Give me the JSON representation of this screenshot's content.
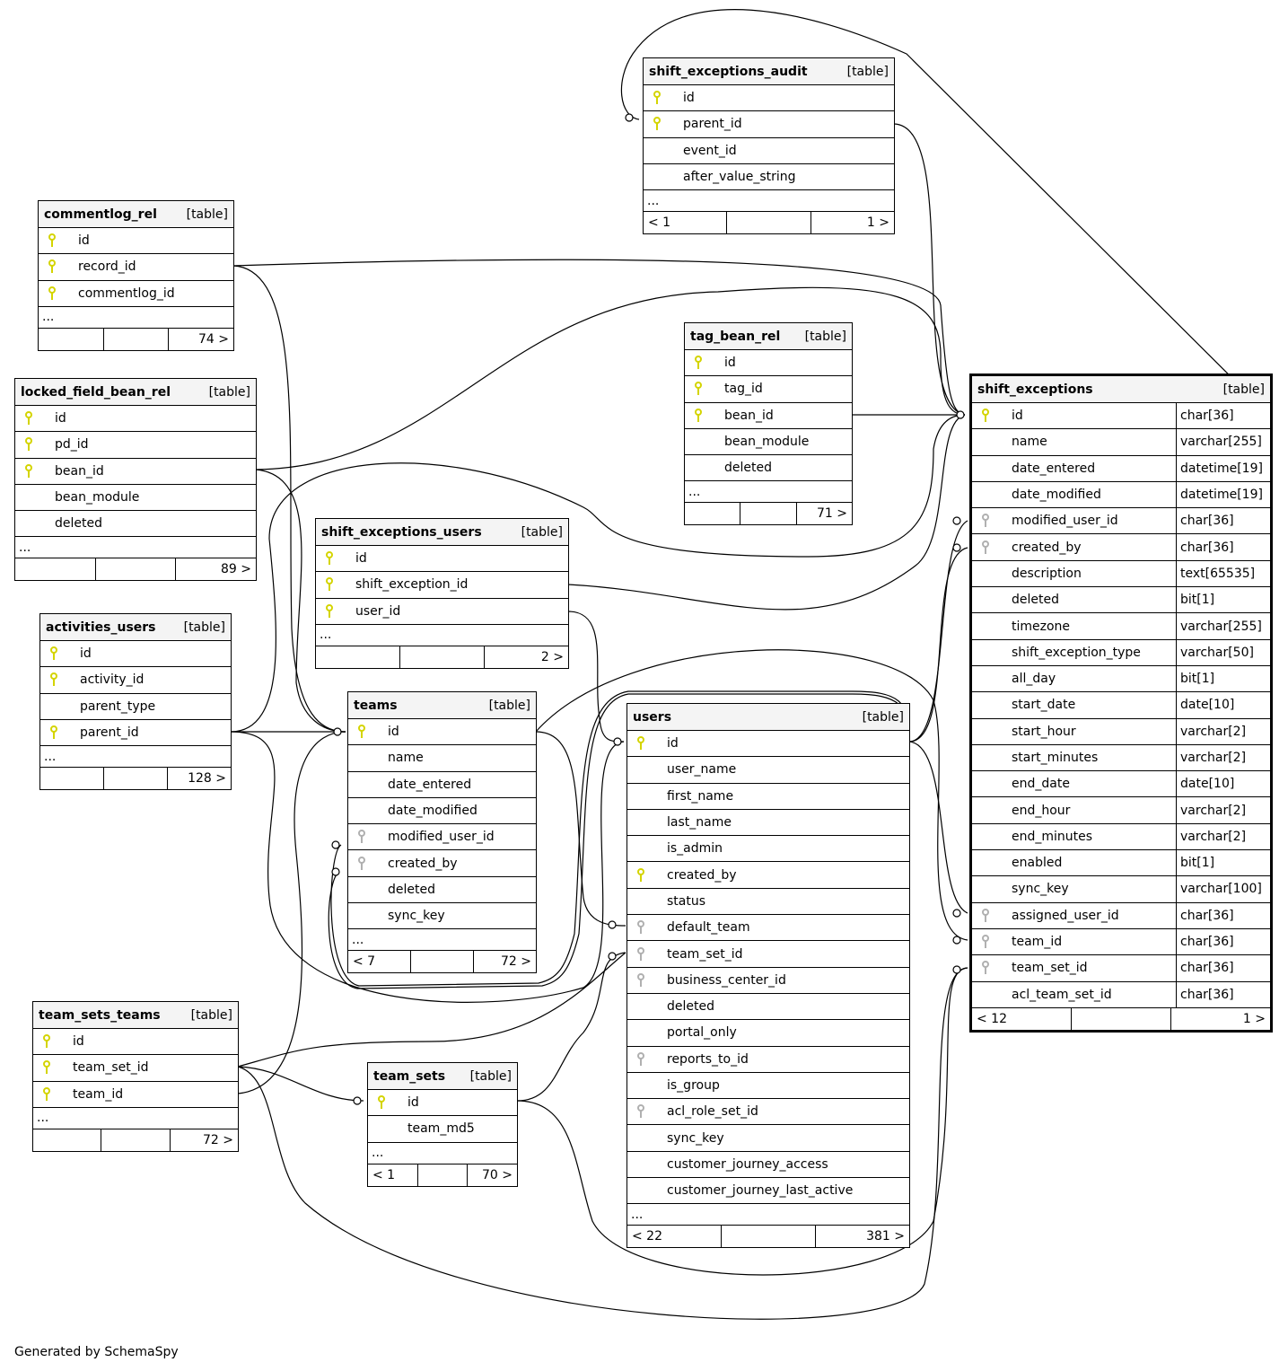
{
  "colors": {
    "primary_key": "#d4d400",
    "foreign_key": "#b0b0b0",
    "header_bg": "#f4f4f4"
  },
  "tag_label": "[table]",
  "footer_note": "Generated by SchemaSpy",
  "tables": [
    {
      "name": "shift_exceptions_audit",
      "columns": [
        {
          "n": "id",
          "k": "pk"
        },
        {
          "n": "parent_id",
          "k": "pk"
        },
        {
          "n": "event_id"
        },
        {
          "n": "after_value_string"
        }
      ],
      "more": "...",
      "footer": [
        "< 1",
        "",
        "1 >"
      ]
    },
    {
      "name": "commentlog_rel",
      "columns": [
        {
          "n": "id",
          "k": "pk"
        },
        {
          "n": "record_id",
          "k": "pk"
        },
        {
          "n": "commentlog_id",
          "k": "pk"
        }
      ],
      "more": "...",
      "footer": [
        "",
        "",
        "74 >"
      ]
    },
    {
      "name": "locked_field_bean_rel",
      "columns": [
        {
          "n": "id",
          "k": "pk"
        },
        {
          "n": "pd_id",
          "k": "pk"
        },
        {
          "n": "bean_id",
          "k": "pk"
        },
        {
          "n": "bean_module"
        },
        {
          "n": "deleted"
        }
      ],
      "more": "...",
      "footer": [
        "",
        "",
        "89 >"
      ]
    },
    {
      "name": "activities_users",
      "columns": [
        {
          "n": "id",
          "k": "pk"
        },
        {
          "n": "activity_id",
          "k": "pk"
        },
        {
          "n": "parent_type"
        },
        {
          "n": "parent_id",
          "k": "pk"
        }
      ],
      "more": "...",
      "footer": [
        "",
        "",
        "128 >"
      ]
    },
    {
      "name": "team_sets_teams",
      "columns": [
        {
          "n": "id",
          "k": "pk"
        },
        {
          "n": "team_set_id",
          "k": "pk"
        },
        {
          "n": "team_id",
          "k": "pk"
        }
      ],
      "more": "...",
      "footer": [
        "",
        "",
        "72 >"
      ]
    },
    {
      "name": "shift_exceptions_users",
      "columns": [
        {
          "n": "id",
          "k": "pk"
        },
        {
          "n": "shift_exception_id",
          "k": "pk"
        },
        {
          "n": "user_id",
          "k": "pk"
        }
      ],
      "more": "...",
      "footer": [
        "",
        "",
        "2 >"
      ]
    },
    {
      "name": "teams",
      "columns": [
        {
          "n": "id",
          "k": "pk"
        },
        {
          "n": "name"
        },
        {
          "n": "date_entered"
        },
        {
          "n": "date_modified"
        },
        {
          "n": "modified_user_id",
          "k": "fk"
        },
        {
          "n": "created_by",
          "k": "fk"
        },
        {
          "n": "deleted"
        },
        {
          "n": "sync_key"
        }
      ],
      "more": "...",
      "footer": [
        "< 7",
        "",
        "72 >"
      ]
    },
    {
      "name": "team_sets",
      "columns": [
        {
          "n": "id",
          "k": "pk"
        },
        {
          "n": "team_md5"
        }
      ],
      "more": "...",
      "footer": [
        "< 1",
        "",
        "70 >"
      ]
    },
    {
      "name": "tag_bean_rel",
      "columns": [
        {
          "n": "id",
          "k": "pk"
        },
        {
          "n": "tag_id",
          "k": "pk"
        },
        {
          "n": "bean_id",
          "k": "pk"
        },
        {
          "n": "bean_module"
        },
        {
          "n": "deleted"
        }
      ],
      "more": "...",
      "footer": [
        "",
        "",
        "71 >"
      ]
    },
    {
      "name": "users",
      "columns": [
        {
          "n": "id",
          "k": "pk"
        },
        {
          "n": "user_name"
        },
        {
          "n": "first_name"
        },
        {
          "n": "last_name"
        },
        {
          "n": "is_admin"
        },
        {
          "n": "created_by",
          "k": "pk"
        },
        {
          "n": "status"
        },
        {
          "n": "default_team",
          "k": "fk"
        },
        {
          "n": "team_set_id",
          "k": "fk"
        },
        {
          "n": "business_center_id",
          "k": "fk"
        },
        {
          "n": "deleted"
        },
        {
          "n": "portal_only"
        },
        {
          "n": "reports_to_id",
          "k": "fk"
        },
        {
          "n": "is_group"
        },
        {
          "n": "acl_role_set_id",
          "k": "fk"
        },
        {
          "n": "sync_key"
        },
        {
          "n": "customer_journey_access"
        },
        {
          "n": "customer_journey_last_active"
        }
      ],
      "more": "...",
      "footer": [
        "< 22",
        "",
        "381 >"
      ]
    },
    {
      "name": "shift_exceptions",
      "focus": true,
      "columns": [
        {
          "n": "id",
          "k": "pk",
          "t": "char[36]"
        },
        {
          "n": "name",
          "t": "varchar[255]"
        },
        {
          "n": "date_entered",
          "t": "datetime[19]"
        },
        {
          "n": "date_modified",
          "t": "datetime[19]"
        },
        {
          "n": "modified_user_id",
          "k": "fk",
          "t": "char[36]"
        },
        {
          "n": "created_by",
          "k": "fk",
          "t": "char[36]"
        },
        {
          "n": "description",
          "t": "text[65535]"
        },
        {
          "n": "deleted",
          "t": "bit[1]"
        },
        {
          "n": "timezone",
          "t": "varchar[255]"
        },
        {
          "n": "shift_exception_type",
          "t": "varchar[50]"
        },
        {
          "n": "all_day",
          "t": "bit[1]"
        },
        {
          "n": "start_date",
          "t": "date[10]"
        },
        {
          "n": "start_hour",
          "t": "varchar[2]"
        },
        {
          "n": "start_minutes",
          "t": "varchar[2]"
        },
        {
          "n": "end_date",
          "t": "date[10]"
        },
        {
          "n": "end_hour",
          "t": "varchar[2]"
        },
        {
          "n": "end_minutes",
          "t": "varchar[2]"
        },
        {
          "n": "enabled",
          "t": "bit[1]"
        },
        {
          "n": "sync_key",
          "t": "varchar[100]"
        },
        {
          "n": "assigned_user_id",
          "k": "fk",
          "t": "char[36]"
        },
        {
          "n": "team_id",
          "k": "fk",
          "t": "char[36]"
        },
        {
          "n": "team_set_id",
          "k": "fk",
          "t": "char[36]"
        },
        {
          "n": "acl_team_set_id",
          "t": "char[36]"
        }
      ],
      "more": "",
      "footer": [
        "< 12",
        "",
        "1 >"
      ]
    }
  ]
}
